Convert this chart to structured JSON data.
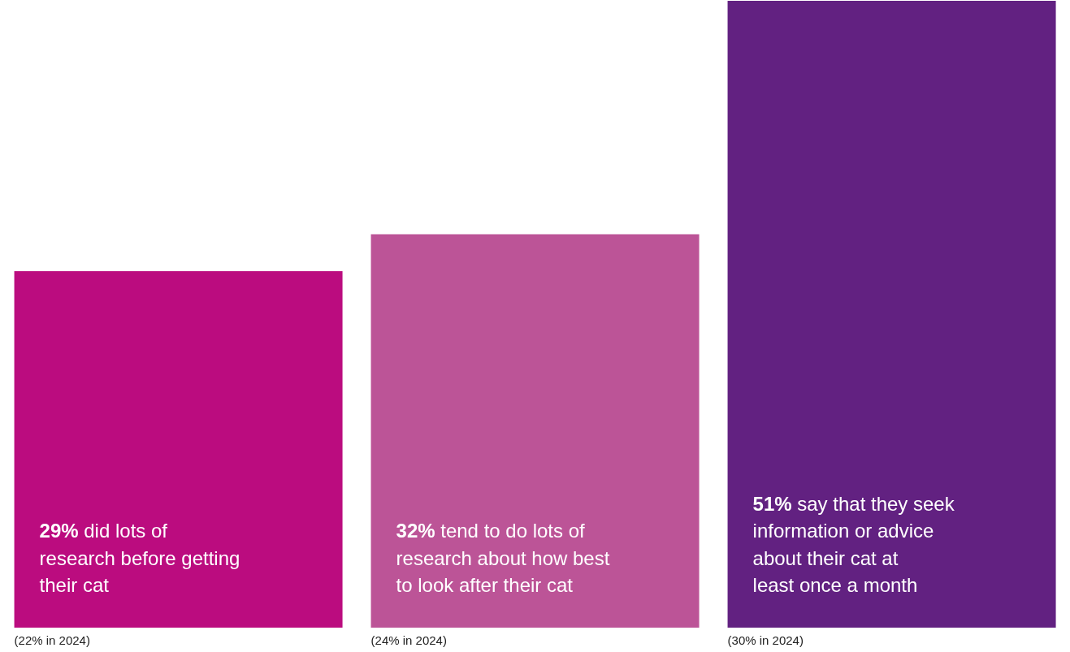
{
  "chart_data": {
    "type": "bar",
    "categories": [
      "did lots of research before getting their cat",
      "tend to do lots of research about how best to look after their cat",
      "say that they seek information or advice about their cat at least once a month"
    ],
    "values": [
      29,
      32,
      51
    ],
    "value_labels": [
      "29%",
      "32%",
      "51%"
    ],
    "colors": [
      "#bb0c7f",
      "#bc5497",
      "#622181"
    ],
    "annotations": [
      "(22% in 2024)",
      "(24% in 2024)",
      "(30% in 2024)"
    ]
  }
}
